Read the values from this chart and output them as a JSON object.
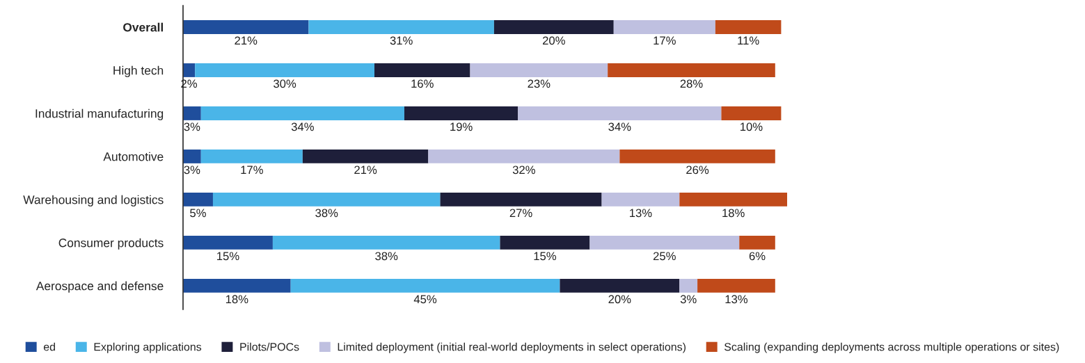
{
  "chart_data": {
    "type": "bar",
    "orientation": "horizontal",
    "stacked": true,
    "legend": "bottom",
    "categories": [
      "Overall",
      "High tech",
      "Industrial manufacturing",
      "Automotive",
      "Warehousing and logistics",
      "Consumer products",
      "Aerospace and defense"
    ],
    "series": [
      {
        "name": "ed",
        "color": "#1f4e9c",
        "values": [
          21,
          2,
          3,
          3,
          5,
          15,
          18
        ],
        "value_labels": [
          "21%",
          "2%",
          "3%",
          "3%",
          "5%",
          "15%",
          "18%"
        ]
      },
      {
        "name": "Exploring applications",
        "color": "#4ab5e8",
        "values": [
          31,
          30,
          34,
          17,
          38,
          38,
          45
        ],
        "value_labels": [
          "31%",
          "30%",
          "34%",
          "17%",
          "38%",
          "38%",
          "45%"
        ]
      },
      {
        "name": "Pilots/POCs",
        "color": "#1e1f3a",
        "values": [
          20,
          16,
          19,
          21,
          27,
          15,
          20
        ],
        "value_labels": [
          "20%",
          "16%",
          "19%",
          "21%",
          "27%",
          "15%",
          "20%"
        ]
      },
      {
        "name": "Limited deployment (initial real-world deployments in select operations)",
        "color": "#bfc0e0",
        "values": [
          17,
          23,
          34,
          32,
          13,
          25,
          3
        ],
        "value_labels": [
          "17%",
          "23%",
          "34%",
          "32%",
          "13%",
          "25%",
          "3%"
        ]
      },
      {
        "name": "Scaling (expanding deployments across multiple operations or sites)",
        "color": "#c04a1a",
        "values": [
          11,
          28,
          10,
          26,
          18,
          6,
          13
        ],
        "value_labels": [
          "11%",
          "28%",
          "10%",
          "26%",
          "18%",
          "6%",
          "13%"
        ]
      }
    ]
  }
}
